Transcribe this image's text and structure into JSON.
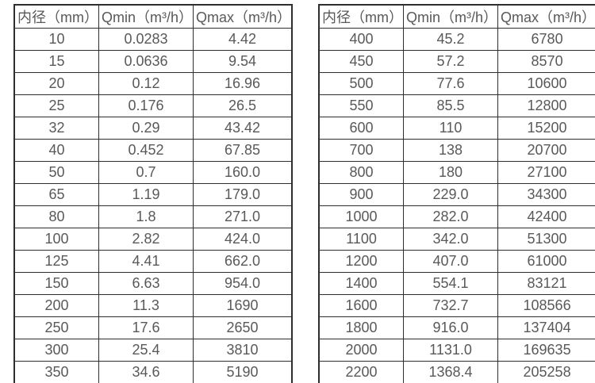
{
  "page": {
    "background_color": "#ffffff",
    "text_color": "#595959",
    "border_color": "#2e2e2e"
  },
  "tables": [
    {
      "name": "flow-range-table-small-diameters",
      "headers": [
        "内径（mm）",
        "Qmin（m³/h）",
        "Qmax（m³/h）"
      ],
      "rows": [
        [
          "10",
          "0.0283",
          "4.42"
        ],
        [
          "15",
          "0.0636",
          "9.54"
        ],
        [
          "20",
          "0.12",
          "16.96"
        ],
        [
          "25",
          "0.176",
          "26.5"
        ],
        [
          "32",
          "0.29",
          "43.42"
        ],
        [
          "40",
          "0.452",
          "67.85"
        ],
        [
          "50",
          "0.7",
          "160.0"
        ],
        [
          "65",
          "1.19",
          "179.0"
        ],
        [
          "80",
          "1.8",
          "271.0"
        ],
        [
          "100",
          "2.82",
          "424.0"
        ],
        [
          "125",
          "4.41",
          "662.0"
        ],
        [
          "150",
          "6.63",
          "954.0"
        ],
        [
          "200",
          "11.3",
          "1690"
        ],
        [
          "250",
          "17.6",
          "2650"
        ],
        [
          "300",
          "25.4",
          "3810"
        ],
        [
          "350",
          "34.6",
          "5190"
        ]
      ]
    },
    {
      "name": "flow-range-table-large-diameters",
      "headers": [
        "内径（mm）",
        "Qmin（m³/h）",
        "Qmax（m³/h）"
      ],
      "rows": [
        [
          "400",
          "45.2",
          "6780"
        ],
        [
          "450",
          "57.2",
          "8570"
        ],
        [
          "500",
          "77.6",
          "10600"
        ],
        [
          "550",
          "85.5",
          "12800"
        ],
        [
          "600",
          "110",
          "15200"
        ],
        [
          "700",
          "138",
          "20700"
        ],
        [
          "800",
          "180",
          "27100"
        ],
        [
          "900",
          "229.0",
          "34300"
        ],
        [
          "1000",
          "282.0",
          "42400"
        ],
        [
          "1100",
          "342.0",
          "51300"
        ],
        [
          "1200",
          "407.0",
          "61000"
        ],
        [
          "1400",
          "554.1",
          "83121"
        ],
        [
          "1600",
          "732.7",
          "108566"
        ],
        [
          "1800",
          "916.0",
          "137404"
        ],
        [
          "2000",
          "1131.0",
          "169635"
        ],
        [
          "2200",
          "1368.4",
          "205258"
        ]
      ]
    }
  ]
}
